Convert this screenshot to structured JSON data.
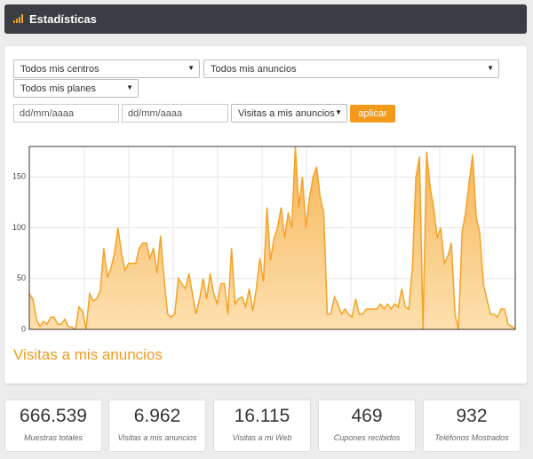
{
  "header": {
    "title": "Estadísticas"
  },
  "filters": {
    "centers": "Todos mis centros",
    "ads": "Todos mis anuncios",
    "plans": "Todos mis planes",
    "date_from": "dd/mm/aaaa",
    "date_to": "dd/mm/aaaa",
    "metric": "Visitas a mis anuncios",
    "apply": "aplicar"
  },
  "chart_data": {
    "type": "area",
    "title": "Visitas a mis anuncios",
    "color": "#f5a225",
    "values": [
      35,
      30,
      10,
      3,
      8,
      5,
      12,
      12,
      5,
      5,
      10,
      3,
      2,
      0,
      22,
      18,
      0,
      35,
      28,
      30,
      38,
      80,
      52,
      60,
      75,
      100,
      75,
      58,
      65,
      65,
      65,
      80,
      85,
      85,
      70,
      80,
      55,
      92,
      50,
      15,
      12,
      15,
      50,
      45,
      40,
      55,
      35,
      15,
      30,
      50,
      30,
      55,
      35,
      25,
      45,
      45,
      15,
      80,
      25,
      30,
      32,
      22,
      40,
      18,
      40,
      70,
      47,
      120,
      68,
      90,
      100,
      120,
      90,
      115,
      100,
      180,
      120,
      150,
      100,
      130,
      150,
      160,
      130,
      115,
      15,
      15,
      32,
      25,
      15,
      20,
      15,
      12,
      30,
      15,
      15,
      20,
      20,
      20,
      20,
      25,
      20,
      25,
      20,
      25,
      22,
      40,
      22,
      20,
      60,
      150,
      170,
      0,
      175,
      140,
      120,
      90,
      100,
      65,
      72,
      85,
      15,
      0,
      95,
      115,
      145,
      172,
      110,
      95,
      45,
      30,
      15,
      15,
      12,
      20,
      20,
      5,
      3,
      0
    ],
    "ylim": [
      0,
      180
    ],
    "yticks": [
      0,
      50,
      100,
      150
    ],
    "grid": true
  },
  "stats": [
    {
      "value": "666.539",
      "label": "Muestras totales"
    },
    {
      "value": "6.962",
      "label": "Visitas a mis anuncios"
    },
    {
      "value": "16.115",
      "label": "Visitas a mi Web"
    },
    {
      "value": "469",
      "label": "Cupones recibidos"
    },
    {
      "value": "932",
      "label": "Teléfonos Mostrados"
    }
  ]
}
